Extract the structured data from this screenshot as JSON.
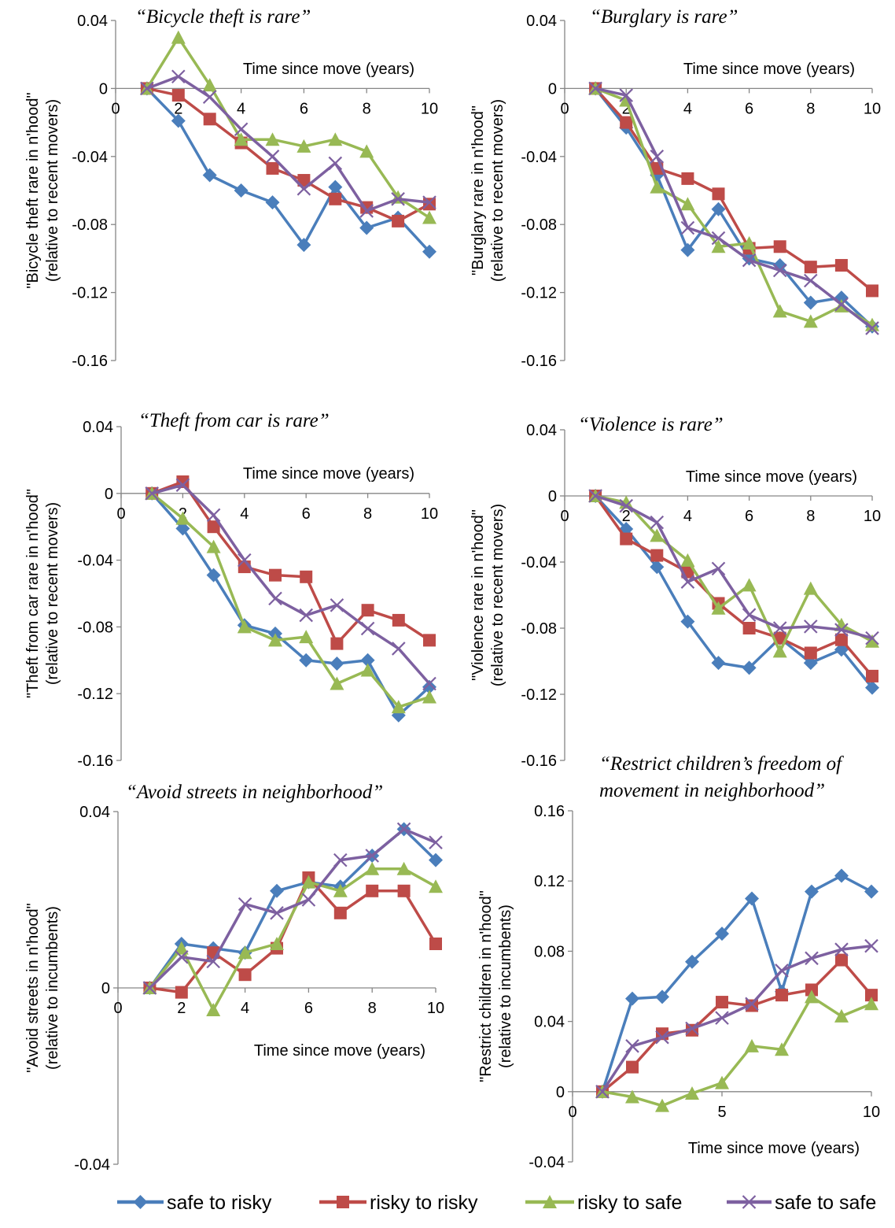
{
  "series_styles": [
    {
      "name": "safe to risky",
      "color": "#4a7ebb",
      "marker": "diamond"
    },
    {
      "name": "risky to risky",
      "color": "#be4b48",
      "marker": "square"
    },
    {
      "name": "risky to safe",
      "color": "#98b954",
      "marker": "triangle"
    },
    {
      "name": "safe to safe",
      "color": "#7d60a0",
      "marker": "x"
    }
  ],
  "legend": {
    "placement": "bottom"
  },
  "chart_data": [
    {
      "type": "line",
      "title": "“Bicycle theft is rare”",
      "xlabel": "Time since move (years)",
      "ylabel": [
        "\"Bicycle theft rare in n'hood\"",
        "(relative to recent movers)"
      ],
      "xlim": [
        0,
        10
      ],
      "ylim": [
        -0.16,
        0.04
      ],
      "xticks": [
        "0",
        "2",
        "4",
        "6",
        "8",
        "10"
      ],
      "yticks": [
        "0.04",
        "0",
        "-0.04",
        "-0.08",
        "-0.12",
        "-0.16"
      ],
      "x": [
        1,
        2,
        3,
        4,
        5,
        6,
        7,
        8,
        9,
        10
      ],
      "series": [
        {
          "name": "safe to risky",
          "values": [
            0,
            -0.019,
            -0.051,
            -0.06,
            -0.067,
            -0.092,
            -0.058,
            -0.082,
            -0.076,
            -0.096
          ]
        },
        {
          "name": "risky to risky",
          "values": [
            0,
            -0.004,
            -0.018,
            -0.032,
            -0.047,
            -0.054,
            -0.065,
            -0.07,
            -0.078,
            -0.068
          ]
        },
        {
          "name": "risky to safe",
          "values": [
            0,
            0.03,
            0.002,
            -0.03,
            -0.03,
            -0.034,
            -0.03,
            -0.037,
            -0.064,
            -0.076
          ]
        },
        {
          "name": "safe to safe",
          "values": [
            0,
            0.007,
            -0.005,
            -0.024,
            -0.04,
            -0.059,
            -0.044,
            -0.072,
            -0.065,
            -0.067
          ]
        }
      ]
    },
    {
      "type": "line",
      "title": "“Burglary is rare”",
      "xlabel": "Time since move (years)",
      "ylabel": [
        "\"Burglary rare in n'hood\"",
        "(relative to recent movers)"
      ],
      "xlim": [
        0,
        10
      ],
      "ylim": [
        -0.16,
        0.04
      ],
      "xticks": [
        "0",
        "2",
        "4",
        "6",
        "8",
        "10"
      ],
      "yticks": [
        "0.04",
        "0",
        "-0.04",
        "-0.08",
        "-0.12",
        "-0.16"
      ],
      "x": [
        1,
        2,
        3,
        4,
        5,
        6,
        7,
        8,
        9,
        10
      ],
      "series": [
        {
          "name": "safe to risky",
          "values": [
            0,
            -0.023,
            -0.051,
            -0.095,
            -0.071,
            -0.1,
            -0.104,
            -0.126,
            -0.123,
            -0.14
          ]
        },
        {
          "name": "risky to risky",
          "values": [
            0,
            -0.02,
            -0.047,
            -0.053,
            -0.062,
            -0.094,
            -0.093,
            -0.105,
            -0.104,
            -0.119
          ]
        },
        {
          "name": "risky to safe",
          "values": [
            0,
            -0.007,
            -0.058,
            -0.068,
            -0.093,
            -0.091,
            -0.131,
            -0.137,
            -0.128,
            -0.139
          ]
        },
        {
          "name": "safe to safe",
          "values": [
            0,
            -0.004,
            -0.04,
            -0.082,
            -0.088,
            -0.101,
            -0.107,
            -0.113,
            -0.127,
            -0.141
          ]
        }
      ]
    },
    {
      "type": "line",
      "title": "“Theft from car is rare”",
      "xlabel": "Time since move (years)",
      "ylabel": [
        "\"Theft from car rare in n'hood\"",
        "(relative to recent movers)"
      ],
      "xlim": [
        0,
        10
      ],
      "ylim": [
        -0.16,
        0.04
      ],
      "xticks": [
        "0",
        "2",
        "4",
        "6",
        "8",
        "10"
      ],
      "yticks": [
        "0.04",
        "0",
        "-0.04",
        "-0.08",
        "-0.12",
        "-0.16"
      ],
      "x": [
        1,
        2,
        3,
        4,
        5,
        6,
        7,
        8,
        9,
        10
      ],
      "series": [
        {
          "name": "safe to risky",
          "values": [
            0,
            -0.021,
            -0.049,
            -0.079,
            -0.084,
            -0.1,
            -0.102,
            -0.1,
            -0.133,
            -0.116
          ]
        },
        {
          "name": "risky to risky",
          "values": [
            0,
            0.007,
            -0.02,
            -0.044,
            -0.049,
            -0.05,
            -0.09,
            -0.07,
            -0.076,
            -0.088
          ]
        },
        {
          "name": "risky to safe",
          "values": [
            0,
            -0.015,
            -0.032,
            -0.08,
            -0.088,
            -0.086,
            -0.114,
            -0.106,
            -0.128,
            -0.122
          ]
        },
        {
          "name": "safe to safe",
          "values": [
            0,
            0.005,
            -0.013,
            -0.04,
            -0.063,
            -0.073,
            -0.067,
            -0.081,
            -0.093,
            -0.114
          ]
        }
      ]
    },
    {
      "type": "line",
      "title": "“Violence is rare”",
      "xlabel": "Time since move (years)",
      "ylabel": [
        "\"Violence rare in n'hood\"",
        "(relative to recent movers)"
      ],
      "xlim": [
        0,
        10
      ],
      "ylim": [
        -0.16,
        0.04
      ],
      "xticks": [
        "0",
        "2",
        "4",
        "6",
        "8",
        "10"
      ],
      "yticks": [
        "0.04",
        "0",
        "-0.04",
        "-0.08",
        "-0.12",
        "-0.16"
      ],
      "x": [
        1,
        2,
        3,
        4,
        5,
        6,
        7,
        8,
        9,
        10
      ],
      "series": [
        {
          "name": "safe to risky",
          "values": [
            0,
            -0.02,
            -0.043,
            -0.076,
            -0.101,
            -0.104,
            -0.086,
            -0.101,
            -0.093,
            -0.116
          ]
        },
        {
          "name": "risky to risky",
          "values": [
            0,
            -0.026,
            -0.036,
            -0.046,
            -0.065,
            -0.08,
            -0.086,
            -0.095,
            -0.087,
            -0.109
          ]
        },
        {
          "name": "risky to safe",
          "values": [
            0,
            -0.004,
            -0.024,
            -0.039,
            -0.068,
            -0.054,
            -0.094,
            -0.056,
            -0.078,
            -0.088
          ]
        },
        {
          "name": "safe to safe",
          "values": [
            0,
            -0.006,
            -0.016,
            -0.052,
            -0.044,
            -0.072,
            -0.08,
            -0.079,
            -0.081,
            -0.086
          ]
        }
      ]
    },
    {
      "type": "line",
      "title": "“Avoid streets in neighborhood”",
      "xlabel": "Time since move (years)",
      "ylabel": [
        "\"Avoid streets in n'hood\"",
        "(relative to incumbents)"
      ],
      "xlim": [
        0,
        10
      ],
      "ylim": [
        -0.04,
        0.04
      ],
      "xticks": [
        "0",
        "2",
        "4",
        "6",
        "8",
        "10"
      ],
      "yticks": [
        "0.04",
        "0",
        "-0.04"
      ],
      "x": [
        1,
        2,
        3,
        4,
        5,
        6,
        7,
        8,
        9,
        10
      ],
      "series": [
        {
          "name": "safe to risky",
          "values": [
            0,
            0.01,
            0.009,
            0.008,
            0.022,
            0.024,
            0.023,
            0.03,
            0.036,
            0.029
          ]
        },
        {
          "name": "risky to risky",
          "values": [
            0,
            -0.001,
            0.008,
            0.003,
            0.009,
            0.025,
            0.017,
            0.022,
            0.022,
            0.01
          ]
        },
        {
          "name": "risky to safe",
          "values": [
            0,
            0.009,
            -0.005,
            0.008,
            0.01,
            0.024,
            0.022,
            0.027,
            0.027,
            0.023
          ]
        },
        {
          "name": "safe to safe",
          "values": [
            0,
            0.007,
            0.006,
            0.019,
            0.017,
            0.02,
            0.029,
            0.03,
            0.036,
            0.033
          ]
        }
      ]
    },
    {
      "type": "line",
      "title": [
        "“Restrict children’s freedom of",
        "movement in neighborhood”"
      ],
      "xlabel": "Time since move (years)",
      "ylabel": [
        "\"Restrict children in n'hood\"",
        "(relative to incumbents)"
      ],
      "xlim": [
        0,
        10
      ],
      "ylim": [
        -0.04,
        0.16
      ],
      "xticks": [
        "0",
        "5",
        "10"
      ],
      "yticks": [
        "0.16",
        "0.12",
        "0.08",
        "0.04",
        "0",
        "-0.04"
      ],
      "x": [
        1,
        2,
        3,
        4,
        5,
        6,
        7,
        8,
        9,
        10
      ],
      "series": [
        {
          "name": "safe to risky",
          "values": [
            0,
            0.053,
            0.054,
            0.074,
            0.09,
            0.11,
            0.057,
            0.114,
            0.123,
            0.114
          ]
        },
        {
          "name": "risky to risky",
          "values": [
            0,
            0.014,
            0.033,
            0.035,
            0.051,
            0.049,
            0.055,
            0.058,
            0.075,
            0.055
          ]
        },
        {
          "name": "risky to safe",
          "values": [
            0,
            -0.003,
            -0.008,
            -0.001,
            0.005,
            0.026,
            0.024,
            0.054,
            0.043,
            0.05
          ]
        },
        {
          "name": "safe to safe",
          "values": [
            0,
            0.026,
            0.031,
            0.036,
            0.042,
            0.05,
            0.069,
            0.076,
            0.081,
            0.083
          ]
        }
      ]
    }
  ]
}
